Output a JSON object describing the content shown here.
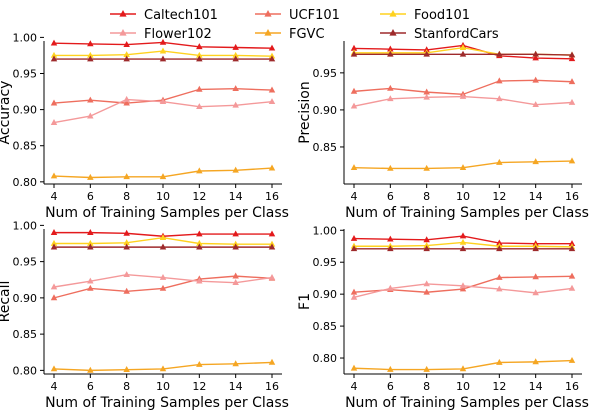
{
  "chart_data": {
    "type": "line",
    "x": [
      4,
      6,
      8,
      10,
      12,
      14,
      16
    ],
    "legend": {
      "placement": "top",
      "columns": 3,
      "entries": [
        "Caltech101",
        "UCF101",
        "Food101",
        "Flower102",
        "FGVC",
        "StanfordCars"
      ]
    },
    "series_styles": [
      {
        "name": "Caltech101",
        "color": "#e31a1c",
        "marker": "triangle-up"
      },
      {
        "name": "Food101",
        "color": "#ffd21f",
        "marker": "triangle-up"
      },
      {
        "name": "FGVC",
        "color": "#f5a623",
        "marker": "triangle-up"
      },
      {
        "name": "UCF101",
        "color": "#ee6e5e",
        "marker": "triangle-up"
      },
      {
        "name": "Flower102",
        "color": "#f4999a",
        "marker": "triangle-up"
      },
      {
        "name": "StanfordCars",
        "color": "#9e2a2b",
        "marker": "triangle-up"
      }
    ],
    "subplots": [
      {
        "ylabel": "Accuracy",
        "xlabel": "Num of Training Samples per Class",
        "ylim": [
          0.797,
          0.995
        ],
        "yticks": [
          "0.80",
          "0.85",
          "0.90",
          "0.95",
          "1.00"
        ],
        "ytick_values": [
          0.8,
          0.85,
          0.9,
          0.95,
          1.0
        ],
        "grid": false,
        "series": [
          {
            "name": "Caltech101",
            "values": [
              0.992,
              0.991,
              0.99,
              0.993,
              0.987,
              0.986,
              0.985
            ]
          },
          {
            "name": "Food101",
            "values": [
              0.975,
              0.975,
              0.976,
              0.981,
              0.975,
              0.975,
              0.974
            ]
          },
          {
            "name": "FGVC",
            "values": [
              0.808,
              0.806,
              0.807,
              0.807,
              0.815,
              0.816,
              0.819
            ]
          },
          {
            "name": "UCF101",
            "values": [
              0.909,
              0.913,
              0.909,
              0.913,
              0.928,
              0.929,
              0.927
            ]
          },
          {
            "name": "Flower102",
            "values": [
              0.882,
              0.891,
              0.914,
              0.911,
              0.904,
              0.906,
              0.911
            ]
          },
          {
            "name": "StanfordCars",
            "values": [
              0.97,
              0.97,
              0.97,
              0.97,
              0.97,
              0.97,
              0.97
            ]
          }
        ]
      },
      {
        "ylabel": "Precision",
        "xlabel": "Num of Training Samples per Class",
        "ylim": [
          0.8,
          0.993
        ],
        "yticks": [
          "0.85",
          "0.90",
          "0.95"
        ],
        "ytick_values": [
          0.85,
          0.9,
          0.95
        ],
        "grid": false,
        "series": [
          {
            "name": "Caltech101",
            "values": [
              0.983,
              0.982,
              0.981,
              0.987,
              0.973,
              0.97,
              0.969
            ]
          },
          {
            "name": "Food101",
            "values": [
              0.977,
              0.977,
              0.977,
              0.984,
              0.975,
              0.975,
              0.974
            ]
          },
          {
            "name": "FGVC",
            "values": [
              0.822,
              0.821,
              0.821,
              0.822,
              0.829,
              0.83,
              0.831
            ]
          },
          {
            "name": "UCF101",
            "values": [
              0.925,
              0.929,
              0.924,
              0.921,
              0.939,
              0.94,
              0.938
            ]
          },
          {
            "name": "Flower102",
            "values": [
              0.905,
              0.915,
              0.917,
              0.918,
              0.915,
              0.907,
              0.91
            ]
          },
          {
            "name": "StanfordCars",
            "values": [
              0.975,
              0.975,
              0.975,
              0.975,
              0.975,
              0.975,
              0.974
            ]
          }
        ]
      },
      {
        "ylabel": "Recall",
        "xlabel": "Num of Training Samples per Class",
        "ylim": [
          0.795,
          0.995
        ],
        "yticks": [
          "0.80",
          "0.85",
          "0.90",
          "0.95",
          "1.00"
        ],
        "ytick_values": [
          0.8,
          0.85,
          0.9,
          0.95,
          1.0
        ],
        "grid": false,
        "series": [
          {
            "name": "Caltech101",
            "values": [
              0.99,
              0.99,
              0.989,
              0.985,
              0.988,
              0.988,
              0.988
            ]
          },
          {
            "name": "Food101",
            "values": [
              0.975,
              0.975,
              0.976,
              0.983,
              0.975,
              0.974,
              0.974
            ]
          },
          {
            "name": "FGVC",
            "values": [
              0.802,
              0.8,
              0.801,
              0.802,
              0.808,
              0.809,
              0.811
            ]
          },
          {
            "name": "UCF101",
            "values": [
              0.9,
              0.913,
              0.909,
              0.913,
              0.926,
              0.93,
              0.927
            ]
          },
          {
            "name": "Flower102",
            "values": [
              0.915,
              0.923,
              0.932,
              0.928,
              0.923,
              0.921,
              0.928
            ]
          },
          {
            "name": "StanfordCars",
            "values": [
              0.97,
              0.97,
              0.97,
              0.97,
              0.97,
              0.97,
              0.97
            ]
          }
        ]
      },
      {
        "ylabel": "F1",
        "xlabel": "Num of Training Samples per Class",
        "ylim": [
          0.775,
          1.002
        ],
        "yticks": [
          "0.80",
          "0.85",
          "0.90",
          "0.95",
          "1.00"
        ],
        "ytick_values": [
          0.8,
          0.85,
          0.9,
          0.95,
          1.0
        ],
        "grid": false,
        "series": [
          {
            "name": "Caltech101",
            "values": [
              0.987,
              0.986,
              0.985,
              0.991,
              0.98,
              0.979,
              0.979
            ]
          },
          {
            "name": "Food101",
            "values": [
              0.975,
              0.975,
              0.976,
              0.981,
              0.975,
              0.975,
              0.974
            ]
          },
          {
            "name": "FGVC",
            "values": [
              0.784,
              0.782,
              0.782,
              0.783,
              0.793,
              0.794,
              0.796
            ]
          },
          {
            "name": "UCF101",
            "values": [
              0.903,
              0.907,
              0.903,
              0.908,
              0.926,
              0.927,
              0.928
            ]
          },
          {
            "name": "Flower102",
            "values": [
              0.895,
              0.909,
              0.916,
              0.913,
              0.908,
              0.902,
              0.909
            ]
          },
          {
            "name": "StanfordCars",
            "values": [
              0.971,
              0.971,
              0.971,
              0.971,
              0.971,
              0.971,
              0.971
            ]
          }
        ]
      }
    ]
  }
}
